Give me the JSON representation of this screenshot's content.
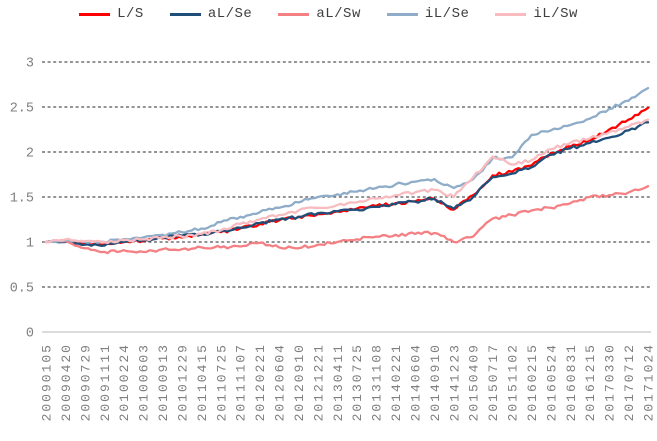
{
  "chart_data": {
    "type": "line",
    "title": "",
    "xlabel": "",
    "ylabel": "",
    "ylim": [
      0,
      3
    ],
    "y_tick_labels": [
      "0",
      "0.5",
      "1",
      "1.5",
      "2",
      "2.5",
      "3"
    ],
    "y_tick_values": [
      0,
      0.5,
      1,
      1.5,
      2,
      2.5,
      3
    ],
    "grid": "horizontal-dashed",
    "legend_position": "top",
    "x_tick_labels": [
      "20090105",
      "20090420",
      "20090729",
      "20091111",
      "20100224",
      "20100603",
      "20100913",
      "20101229",
      "20110415",
      "20110725",
      "20111107",
      "20120221",
      "20120604",
      "20120910",
      "20121221",
      "20130411",
      "20130725",
      "20131108",
      "20140221",
      "20140604",
      "20140910",
      "20141223",
      "20150409",
      "20150717",
      "20151102",
      "20160215",
      "20160524",
      "20160831",
      "20161215",
      "20170330",
      "20170712",
      "20171024"
    ],
    "series": [
      {
        "name": "L/S",
        "color": "#ff0000",
        "values": [
          1.0,
          1.01,
          0.98,
          0.97,
          1.0,
          1.01,
          1.04,
          1.05,
          1.08,
          1.11,
          1.15,
          1.2,
          1.24,
          1.28,
          1.31,
          1.34,
          1.37,
          1.4,
          1.43,
          1.45,
          1.48,
          1.36,
          1.52,
          1.74,
          1.78,
          1.85,
          1.99,
          2.06,
          2.13,
          2.25,
          2.36,
          2.49
        ]
      },
      {
        "name": "aL/Se",
        "color": "#1f4e79",
        "values": [
          1.0,
          1.0,
          0.97,
          0.96,
          1.0,
          1.02,
          1.05,
          1.07,
          1.09,
          1.12,
          1.16,
          1.21,
          1.25,
          1.28,
          1.32,
          1.34,
          1.36,
          1.39,
          1.42,
          1.45,
          1.48,
          1.37,
          1.5,
          1.72,
          1.76,
          1.83,
          1.97,
          2.04,
          2.1,
          2.16,
          2.24,
          2.33
        ]
      },
      {
        "name": "aL/Sw",
        "color": "#f48084",
        "values": [
          1.0,
          1.01,
          0.93,
          0.89,
          0.91,
          0.89,
          0.92,
          0.92,
          0.94,
          0.94,
          0.95,
          0.99,
          0.94,
          0.93,
          0.97,
          1.0,
          1.03,
          1.06,
          1.08,
          1.09,
          1.1,
          1.0,
          1.06,
          1.26,
          1.3,
          1.35,
          1.38,
          1.43,
          1.5,
          1.52,
          1.55,
          1.62
        ]
      },
      {
        "name": "iL/Se",
        "color": "#8fadc8",
        "values": [
          1.0,
          1.02,
          1.0,
          1.0,
          1.03,
          1.05,
          1.08,
          1.11,
          1.15,
          1.22,
          1.28,
          1.33,
          1.38,
          1.44,
          1.5,
          1.53,
          1.56,
          1.6,
          1.64,
          1.67,
          1.7,
          1.6,
          1.7,
          1.93,
          1.94,
          2.19,
          2.24,
          2.3,
          2.37,
          2.48,
          2.57,
          2.71
        ]
      },
      {
        "name": "iL/Sw",
        "color": "#f8bcc0",
        "values": [
          1.0,
          1.03,
          1.01,
          1.0,
          1.02,
          1.03,
          1.05,
          1.06,
          1.09,
          1.13,
          1.2,
          1.25,
          1.3,
          1.35,
          1.38,
          1.41,
          1.44,
          1.48,
          1.52,
          1.55,
          1.58,
          1.5,
          1.72,
          1.95,
          1.86,
          1.91,
          2.03,
          2.1,
          2.15,
          2.22,
          2.28,
          2.36
        ]
      }
    ],
    "style": {
      "grid_color": "#2b2b2b",
      "zero_axis_color": "#c6c6c6",
      "tick_label_color": "#7f7f7f",
      "legend_text_color": "#3f3f3f"
    }
  }
}
